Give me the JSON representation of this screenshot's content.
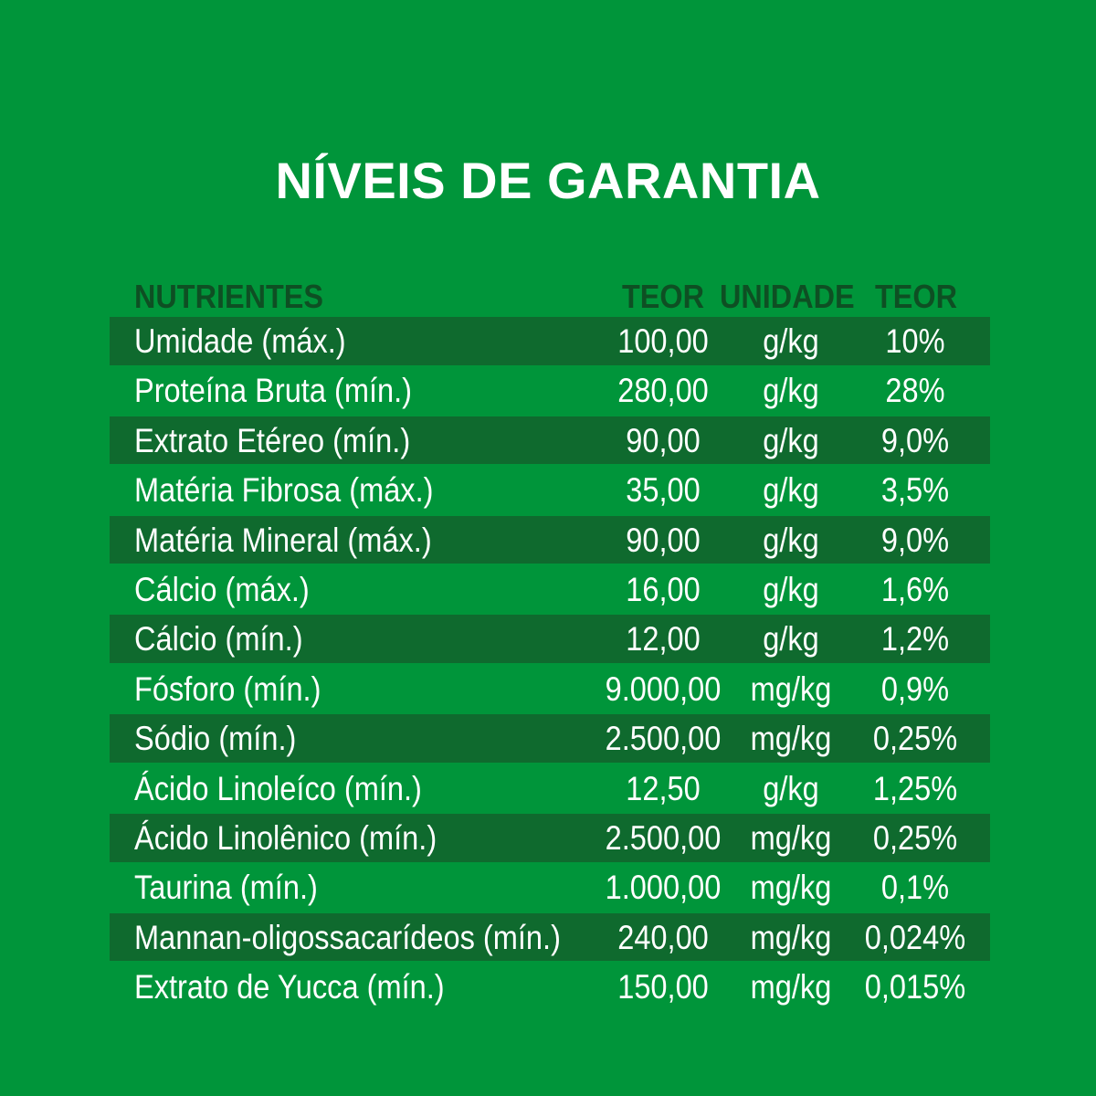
{
  "title": "NÍVEIS DE GARANTIA",
  "headers": {
    "nutrientes": "NUTRIENTES",
    "teor": "TEOR",
    "unidade": "UNIDADE",
    "teor2": "TEOR"
  },
  "colors": {
    "background": "#00953a",
    "row_dark": "#0f6a2e",
    "header_text": "#0e4f23",
    "text": "#ffffff"
  },
  "rows": [
    {
      "name": "Umidade (máx.)",
      "value": "100,00",
      "unit": "g/kg",
      "percent": "10%"
    },
    {
      "name": "Proteína Bruta (mín.)",
      "value": "280,00",
      "unit": "g/kg",
      "percent": "28%"
    },
    {
      "name": "Extrato Etéreo (mín.)",
      "value": "90,00",
      "unit": "g/kg",
      "percent": "9,0%"
    },
    {
      "name": "Matéria Fibrosa (máx.)",
      "value": "35,00",
      "unit": "g/kg",
      "percent": "3,5%"
    },
    {
      "name": "Matéria Mineral (máx.)",
      "value": "90,00",
      "unit": "g/kg",
      "percent": "9,0%"
    },
    {
      "name": "Cálcio (máx.)",
      "value": "16,00",
      "unit": "g/kg",
      "percent": "1,6%"
    },
    {
      "name": "Cálcio (mín.)",
      "value": "12,00",
      "unit": "g/kg",
      "percent": "1,2%"
    },
    {
      "name": "Fósforo (mín.)",
      "value": "9.000,00",
      "unit": "mg/kg",
      "percent": "0,9%"
    },
    {
      "name": "Sódio (mín.)",
      "value": "2.500,00",
      "unit": "mg/kg",
      "percent": "0,25%"
    },
    {
      "name": "Ácido Linoleíco (mín.)",
      "value": "12,50",
      "unit": "g/kg",
      "percent": "1,25%"
    },
    {
      "name": "Ácido Linolênico (mín.)",
      "value": "2.500,00",
      "unit": "mg/kg",
      "percent": "0,25%"
    },
    {
      "name": "Taurina (mín.)",
      "value": "1.000,00",
      "unit": "mg/kg",
      "percent": "0,1%"
    },
    {
      "name": "Mannan-oligossacarídeos (mín.)",
      "value": "240,00",
      "unit": "mg/kg",
      "percent": "0,024%"
    },
    {
      "name": "Extrato de Yucca (mín.)",
      "value": "150,00",
      "unit": "mg/kg",
      "percent": "0,015%"
    }
  ]
}
